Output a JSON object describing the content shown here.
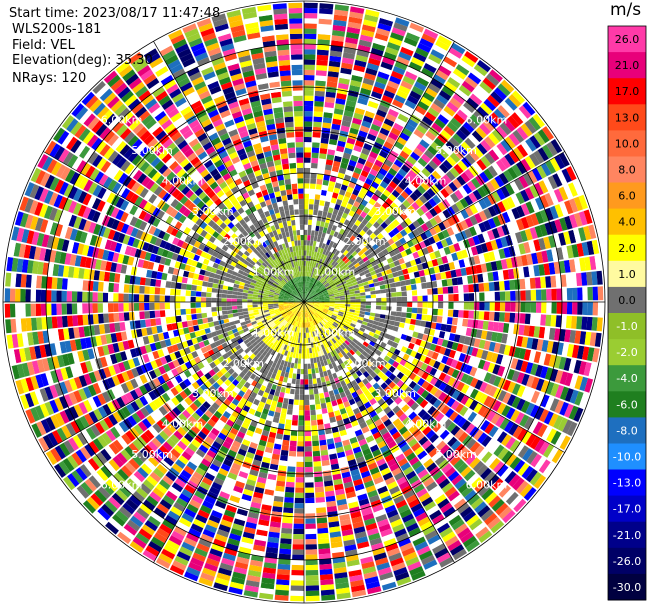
{
  "header": {
    "start_time": "Start time: 2023/08/17 11:47:48",
    "instrument": "WLS200s-181",
    "field": "Field: VEL",
    "elevation": "Elevation(deg): 35.30",
    "nrays": "NRays: 120"
  },
  "chart_data": {
    "type": "heatmap",
    "projection": "polar-ppi",
    "colorbar": {
      "unit": "m/s",
      "levels": [
        "26.0",
        "21.0",
        "17.0",
        "13.0",
        "10.0",
        "8.0",
        "6.0",
        "4.0",
        "2.0",
        "1.0",
        "0.0",
        "-1.0",
        "-2.0",
        "-4.0",
        "-6.0",
        "-8.0",
        "-10.0",
        "-13.0",
        "-17.0",
        "-21.0",
        "-26.0",
        "-30.0"
      ],
      "colors": [
        "#ff3aa8",
        "#e8007a",
        "#ff0000",
        "#ff4a1a",
        "#ff6a3c",
        "#ff8560",
        "#ff9a1e",
        "#ffc000",
        "#ffff00",
        "#fffaa0",
        "#707070",
        "#8fbf28",
        "#9acd32",
        "#3c9a3c",
        "#1f7f1f",
        "#1e6fbf",
        "#1f8fff",
        "#0000ff",
        "#0000c8",
        "#00008a",
        "#000066",
        "#000040"
      ]
    },
    "range_rings": [
      {
        "label": "1.00km",
        "km": 1
      },
      {
        "label": "2.00km",
        "km": 2
      },
      {
        "label": "3.00km",
        "km": 3
      },
      {
        "label": "4.00km",
        "km": 4
      },
      {
        "label": "5.00km",
        "km": 5
      },
      {
        "label": "6.00km",
        "km": 6
      }
    ],
    "max_range_km": 7,
    "nrays": 120
  }
}
